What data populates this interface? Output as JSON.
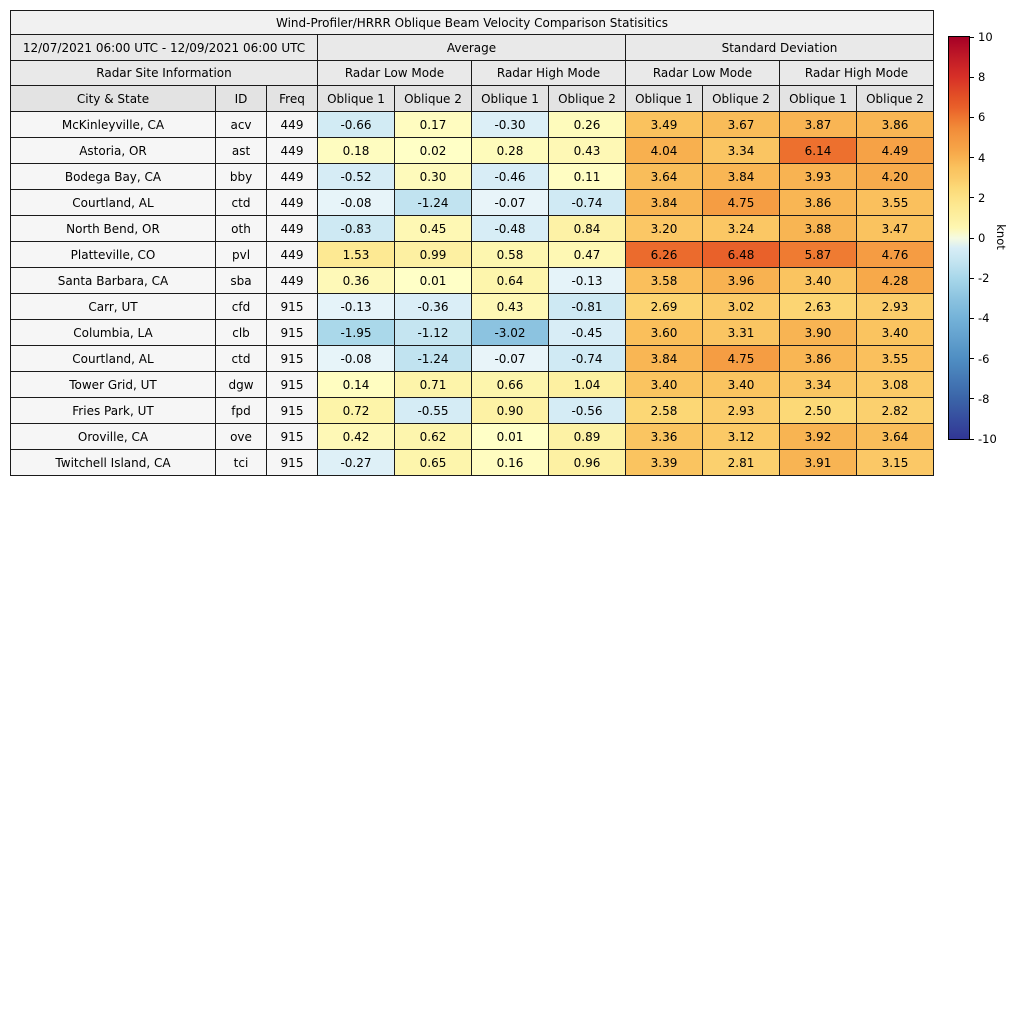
{
  "title": "Wind-Profiler/HRRR Oblique Beam Velocity Comparison Statisitics",
  "header": {
    "date_range": "12/07/2021 06:00 UTC - 12/09/2021 06:00 UTC",
    "average": "Average",
    "standard_deviation": "Standard Deviation",
    "radar_site_information": "Radar Site Information",
    "radar_low_mode": "Radar Low Mode",
    "radar_high_mode": "Radar High Mode",
    "city_state": "City & State",
    "id": "ID",
    "freq": "Freq",
    "oblique_1": "Oblique 1",
    "oblique_2": "Oblique 2"
  },
  "colorbar": {
    "label": "knot",
    "vmin": -10,
    "vmax": 10,
    "ticks": [
      10,
      8,
      6,
      4,
      2,
      0,
      -2,
      -4,
      -6,
      -8,
      -10
    ]
  },
  "chart_data": {
    "type": "heatmap-table",
    "title": "Wind-Profiler/HRRR Oblique Beam Velocity Comparison Statisitics",
    "unit": "knot",
    "value_range": [
      -10,
      10
    ],
    "column_groups": [
      "Average / Radar Low Mode",
      "Average / Radar High Mode",
      "Standard Deviation / Radar Low Mode",
      "Standard Deviation / Radar High Mode"
    ],
    "value_columns": [
      "avg_low_oblique1",
      "avg_low_oblique2",
      "avg_high_oblique1",
      "avg_high_oblique2",
      "std_low_oblique1",
      "std_low_oblique2",
      "std_high_oblique1",
      "std_high_oblique2"
    ],
    "rows": [
      {
        "city": "McKinleyville, CA",
        "id": "acv",
        "freq": 449,
        "values": [
          -0.66,
          0.17,
          -0.3,
          0.26,
          3.49,
          3.67,
          3.87,
          3.86
        ]
      },
      {
        "city": "Astoria, OR",
        "id": "ast",
        "freq": 449,
        "values": [
          0.18,
          0.02,
          0.28,
          0.43,
          4.04,
          3.34,
          6.14,
          4.49
        ]
      },
      {
        "city": "Bodega Bay, CA",
        "id": "bby",
        "freq": 449,
        "values": [
          -0.52,
          0.3,
          -0.46,
          0.11,
          3.64,
          3.84,
          3.93,
          4.2
        ]
      },
      {
        "city": "Courtland, AL",
        "id": "ctd",
        "freq": 449,
        "values": [
          -0.08,
          -1.24,
          -0.07,
          -0.74,
          3.84,
          4.75,
          3.86,
          3.55
        ]
      },
      {
        "city": "North Bend, OR",
        "id": "oth",
        "freq": 449,
        "values": [
          -0.83,
          0.45,
          -0.48,
          0.84,
          3.2,
          3.24,
          3.88,
          3.47
        ]
      },
      {
        "city": "Platteville, CO",
        "id": "pvl",
        "freq": 449,
        "values": [
          1.53,
          0.99,
          0.58,
          0.47,
          6.26,
          6.48,
          5.87,
          4.76
        ]
      },
      {
        "city": "Santa Barbara, CA",
        "id": "sba",
        "freq": 449,
        "values": [
          0.36,
          0.01,
          0.64,
          -0.13,
          3.58,
          3.96,
          3.4,
          4.28
        ]
      },
      {
        "city": "Carr, UT",
        "id": "cfd",
        "freq": 915,
        "values": [
          -0.13,
          -0.36,
          0.43,
          -0.81,
          2.69,
          3.02,
          2.63,
          2.93
        ]
      },
      {
        "city": "Columbia, LA",
        "id": "clb",
        "freq": 915,
        "values": [
          -1.95,
          -1.12,
          -3.02,
          -0.45,
          3.6,
          3.31,
          3.9,
          3.4
        ]
      },
      {
        "city": "Courtland, AL",
        "id": "ctd",
        "freq": 915,
        "values": [
          -0.08,
          -1.24,
          -0.07,
          -0.74,
          3.84,
          4.75,
          3.86,
          3.55
        ]
      },
      {
        "city": "Tower Grid, UT",
        "id": "dgw",
        "freq": 915,
        "values": [
          0.14,
          0.71,
          0.66,
          1.04,
          3.4,
          3.4,
          3.34,
          3.08
        ]
      },
      {
        "city": "Fries Park, UT",
        "id": "fpd",
        "freq": 915,
        "values": [
          0.72,
          -0.55,
          0.9,
          -0.56,
          2.58,
          2.93,
          2.5,
          2.82
        ]
      },
      {
        "city": "Oroville, CA",
        "id": "ove",
        "freq": 915,
        "values": [
          0.42,
          0.62,
          0.01,
          0.89,
          3.36,
          3.12,
          3.92,
          3.64
        ]
      },
      {
        "city": "Twitchell Island, CA",
        "id": "tci",
        "freq": 915,
        "values": [
          -0.27,
          0.65,
          0.16,
          0.96,
          3.39,
          2.81,
          3.91,
          3.15
        ]
      }
    ]
  }
}
